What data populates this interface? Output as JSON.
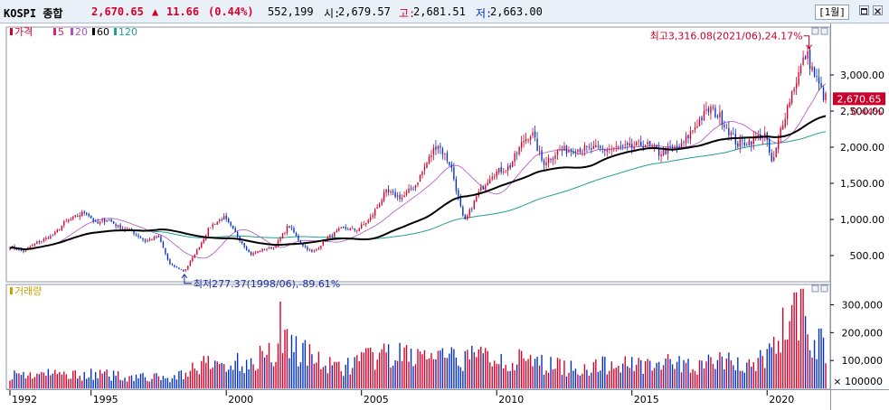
{
  "header": {
    "name": "KOSPI 종합",
    "price": "2,670.65",
    "change_arrow": "▲",
    "change": "11.66",
    "change_pct": "(0.44%)",
    "volume": "552,199",
    "open_label": "시:",
    "open": "2,679.57",
    "high_label": "고:",
    "high": "2,681.51",
    "low_label": "저:",
    "low": "2,663.00",
    "period": "[1월]"
  },
  "colors": {
    "up": "#d8002a",
    "down": "#0030c8",
    "ma5": "#e0206a",
    "ma20": "#b050c8",
    "ma60": "#000000",
    "ma120": "#20a090",
    "volume_pane_label": "#c8a000"
  },
  "chart_data": [
    {
      "type": "candlestick",
      "legend": [
        {
          "label": "가격",
          "color": "#d8002a"
        },
        {
          "label": "5",
          "color": "#e0206a"
        },
        {
          "label": "20",
          "color": "#b050c8"
        },
        {
          "label": "60",
          "color": "#000000"
        },
        {
          "label": "120",
          "color": "#20a090"
        }
      ],
      "y_ticks": [
        500,
        1000,
        1500,
        2000,
        2500,
        3000
      ],
      "y_tick_labels": [
        "500.00",
        "1,000.00",
        "1,500.00",
        "2,000.00",
        "2,500.00",
        "3,000.00"
      ],
      "ylim": [
        150,
        3650
      ],
      "xlim": [
        1991.9,
        2022.3
      ],
      "x_ticks": [
        1992,
        1995,
        2000,
        2005,
        2010,
        2015,
        2020
      ],
      "x_tick_labels": [
        "1992",
        "1995",
        "2000",
        "2005",
        "2010",
        "2015",
        "2020"
      ],
      "last_price_label": "2,670.65",
      "last_price": 2670.65,
      "last_change_label": "0.44%",
      "annotations": {
        "high_text": "최고3,316.08(2021/06),24.17%",
        "high_value": 3316.08,
        "high_x": 2021.45,
        "low_text": "최저277.37(1998/06),-89.61%",
        "low_value": 277.37,
        "low_x": 1998.45
      },
      "close_keypoints": [
        [
          1992.0,
          620
        ],
        [
          1992.5,
          560
        ],
        [
          1993.0,
          680
        ],
        [
          1993.6,
          780
        ],
        [
          1994.0,
          950
        ],
        [
          1994.8,
          1110
        ],
        [
          1995.2,
          930
        ],
        [
          1995.6,
          1010
        ],
        [
          1996.0,
          900
        ],
        [
          1996.5,
          840
        ],
        [
          1997.0,
          700
        ],
        [
          1997.5,
          760
        ],
        [
          1997.9,
          380
        ],
        [
          1998.45,
          280
        ],
        [
          1998.9,
          560
        ],
        [
          1999.4,
          900
        ],
        [
          1999.9,
          1030
        ],
        [
          2000.4,
          780
        ],
        [
          2000.9,
          510
        ],
        [
          2001.3,
          580
        ],
        [
          2001.8,
          620
        ],
        [
          2002.3,
          920
        ],
        [
          2002.8,
          650
        ],
        [
          2003.2,
          540
        ],
        [
          2003.8,
          760
        ],
        [
          2004.3,
          880
        ],
        [
          2004.8,
          850
        ],
        [
          2005.3,
          1000
        ],
        [
          2005.9,
          1380
        ],
        [
          2006.5,
          1300
        ],
        [
          2007.0,
          1480
        ],
        [
          2007.8,
          2060
        ],
        [
          2008.3,
          1750
        ],
        [
          2008.8,
          950
        ],
        [
          2009.3,
          1350
        ],
        [
          2009.8,
          1620
        ],
        [
          2010.5,
          1740
        ],
        [
          2011.0,
          2100
        ],
        [
          2011.3,
          2200
        ],
        [
          2011.7,
          1780
        ],
        [
          2012.3,
          1950
        ],
        [
          2013.0,
          1980
        ],
        [
          2014.0,
          1970
        ],
        [
          2015.0,
          2000
        ],
        [
          2015.5,
          2050
        ],
        [
          2016.0,
          1920
        ],
        [
          2016.8,
          2000
        ],
        [
          2017.5,
          2380
        ],
        [
          2017.9,
          2540
        ],
        [
          2018.3,
          2400
        ],
        [
          2018.9,
          2040
        ],
        [
          2019.5,
          2100
        ],
        [
          2019.9,
          2190
        ],
        [
          2020.2,
          1750
        ],
        [
          2020.5,
          2250
        ],
        [
          2020.9,
          2750
        ],
        [
          2021.45,
          3300
        ],
        [
          2021.8,
          2950
        ],
        [
          2022.1,
          2700
        ],
        [
          2022.2,
          2670
        ]
      ]
    },
    {
      "type": "bar",
      "legend": [
        {
          "label": "거래량",
          "color": "#c8a000"
        }
      ],
      "unit_label": "× 100000",
      "y_ticks": [
        100000,
        200000,
        300000
      ],
      "y_tick_labels": [
        "100,000",
        "200,000",
        "300,000"
      ],
      "ylim": [
        0,
        370000
      ],
      "volume_keypoints": [
        [
          1992.0,
          50000
        ],
        [
          1995.0,
          50000
        ],
        [
          1998.0,
          35000
        ],
        [
          1999.0,
          80000
        ],
        [
          2000.5,
          90000
        ],
        [
          2001.8,
          130000
        ],
        [
          2002.2,
          175000
        ],
        [
          2003.0,
          120000
        ],
        [
          2004.0,
          70000
        ],
        [
          2005.5,
          110000
        ],
        [
          2007.0,
          120000
        ],
        [
          2008.5,
          100000
        ],
        [
          2009.5,
          120000
        ],
        [
          2011.0,
          95000
        ],
        [
          2013.0,
          70000
        ],
        [
          2015.5,
          95000
        ],
        [
          2017.0,
          80000
        ],
        [
          2018.5,
          95000
        ],
        [
          2019.5,
          80000
        ],
        [
          2020.3,
          150000
        ],
        [
          2021.0,
          260000
        ],
        [
          2021.6,
          150000
        ],
        [
          2022.2,
          140000
        ]
      ],
      "volume_spikes": [
        [
          2002.0,
          312000
        ],
        [
          2020.6,
          290000
        ],
        [
          2021.05,
          345000
        ],
        [
          2021.3,
          358000
        ],
        [
          2021.95,
          215000
        ]
      ]
    }
  ]
}
